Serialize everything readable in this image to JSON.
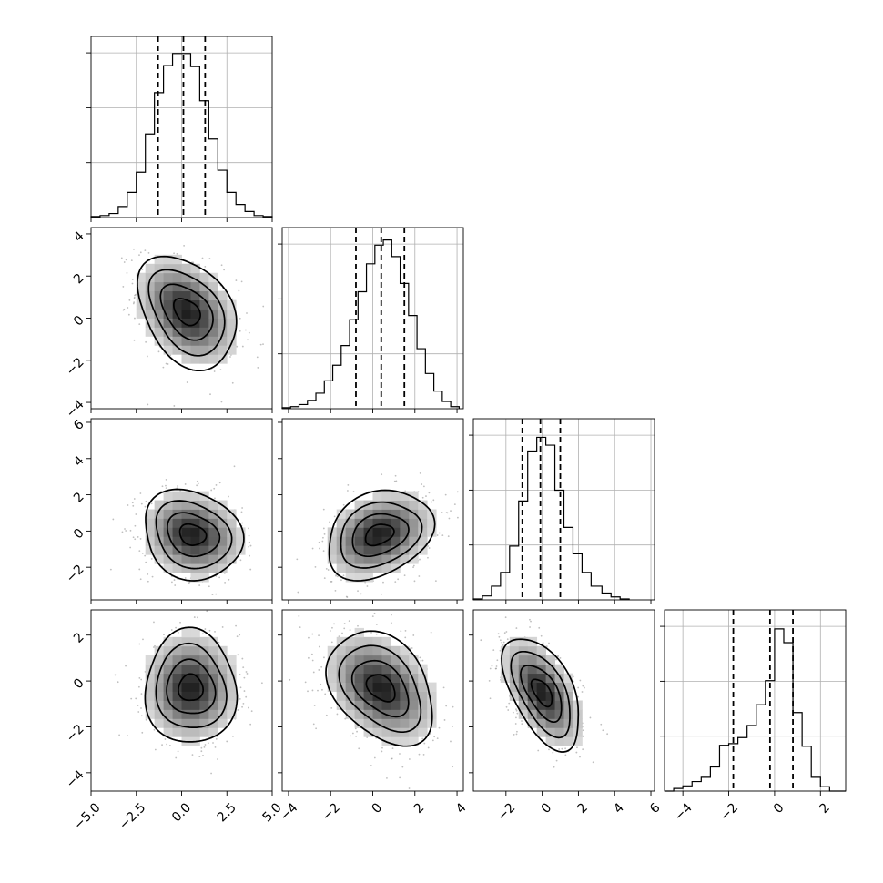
{
  "chart_data": {
    "type": "corner",
    "title": "",
    "parameters": [
      {
        "range": [
          -5.0,
          5.0
        ],
        "ticks": [
          -5.0,
          -2.5,
          0.0,
          2.5,
          5.0
        ],
        "tick_labels": [
          "−5.0",
          "−2.5",
          "0.0",
          "2.5",
          "5.0"
        ]
      },
      {
        "range": [
          -4.3,
          4.3
        ],
        "ticks": [
          -4,
          -2,
          0,
          2,
          4
        ],
        "tick_labels": [
          "−4",
          "−2",
          "0",
          "2",
          "4"
        ]
      },
      {
        "range": [
          -3.8,
          6.2
        ],
        "ticks": [
          -2,
          0,
          2,
          4,
          6
        ],
        "tick_labels": [
          "−2",
          "0",
          "2",
          "4",
          "6"
        ]
      },
      {
        "range": [
          -4.8,
          3.1
        ],
        "ticks": [
          -4,
          -2,
          0,
          2
        ],
        "tick_labels": [
          "−4",
          "−2",
          "0",
          "2"
        ]
      }
    ],
    "histograms": [
      {
        "bin_edges": [
          -5.0,
          -4.5,
          -4.0,
          -3.5,
          -3.0,
          -2.5,
          -2.0,
          -1.5,
          -1.0,
          -0.5,
          0.0,
          0.5,
          1.0,
          1.5,
          2.0,
          2.5,
          3.0,
          3.5,
          4.0,
          4.5,
          5.0
        ],
        "counts": [
          1,
          2,
          4,
          11,
          25,
          45,
          83,
          124,
          151,
          163,
          163,
          150,
          116,
          78,
          47,
          25,
          13,
          6,
          2,
          1
        ],
        "quantiles": [
          -1.3,
          0.1,
          1.3
        ],
        "ylim": [
          0,
          180
        ]
      },
      {
        "bin_edges": [
          -4.3,
          -3.9,
          -3.5,
          -3.1,
          -2.7,
          -2.3,
          -1.9,
          -1.5,
          -1.1,
          -0.7,
          -0.3,
          0.1,
          0.5,
          0.9,
          1.3,
          1.7,
          2.1,
          2.5,
          2.9,
          3.3,
          3.7,
          4.1
        ],
        "counts": [
          1,
          2,
          4,
          8,
          15,
          27,
          42,
          61,
          86,
          113,
          140,
          158,
          163,
          147,
          121,
          90,
          58,
          34,
          17,
          7,
          2
        ],
        "quantiles": [
          -0.8,
          0.4,
          1.5
        ],
        "ylim": [
          0,
          175
        ]
      },
      {
        "bin_edges": [
          -3.8,
          -3.3,
          -2.8,
          -2.3,
          -1.8,
          -1.3,
          -0.8,
          -0.3,
          0.2,
          0.7,
          1.2,
          1.7,
          2.2,
          2.7,
          3.3,
          3.8,
          4.3,
          4.8
        ],
        "counts": [
          1,
          4,
          14,
          28,
          55,
          101,
          152,
          166,
          158,
          112,
          74,
          47,
          28,
          14,
          7,
          3,
          1
        ],
        "quantiles": [
          -1.1,
          -0.1,
          1.0
        ],
        "ylim": [
          0,
          185
        ]
      },
      {
        "bin_edges": [
          -4.8,
          -4.4,
          -4.0,
          -3.6,
          -3.2,
          -2.8,
          -2.4,
          -2.0,
          -1.6,
          -1.2,
          -0.8,
          -0.4,
          0.0,
          0.4,
          0.8,
          1.2,
          1.6,
          2.0,
          2.4,
          2.8,
          3.1
        ],
        "counts": [
          0,
          3,
          6,
          11,
          16,
          28,
          53,
          55,
          62,
          76,
          100,
          128,
          188,
          172,
          91,
          52,
          16,
          5,
          0,
          0
        ],
        "quantiles": [
          -1.8,
          -0.2,
          0.8
        ],
        "ylim": [
          0,
          210
        ]
      }
    ],
    "pairs": [
      {
        "x": 0,
        "y": 1,
        "center": [
          0.3,
          0.3
        ],
        "sigma": [
          1.4,
          1.3
        ],
        "rho": -0.35
      },
      {
        "x": 0,
        "y": 2,
        "center": [
          0.6,
          -0.2
        ],
        "sigma": [
          1.4,
          1.2
        ],
        "rho": -0.15
      },
      {
        "x": 1,
        "y": 2,
        "center": [
          0.3,
          -0.2
        ],
        "sigma": [
          1.3,
          1.2
        ],
        "rho": 0.3
      },
      {
        "x": 0,
        "y": 3,
        "center": [
          0.5,
          -0.3
        ],
        "sigma": [
          1.3,
          1.2
        ],
        "rho": 0.0
      },
      {
        "x": 1,
        "y": 3,
        "center": [
          0.4,
          -0.3
        ],
        "sigma": [
          1.3,
          1.2
        ],
        "rho": -0.35
      },
      {
        "x": 2,
        "y": 3,
        "center": [
          0.0,
          -0.5
        ],
        "sigma": [
          1.1,
          1.2
        ],
        "rho": -0.55
      }
    ],
    "contour_levels_sigma": [
      0.5,
      1.0,
      1.5,
      2.0
    ],
    "grid": true
  }
}
